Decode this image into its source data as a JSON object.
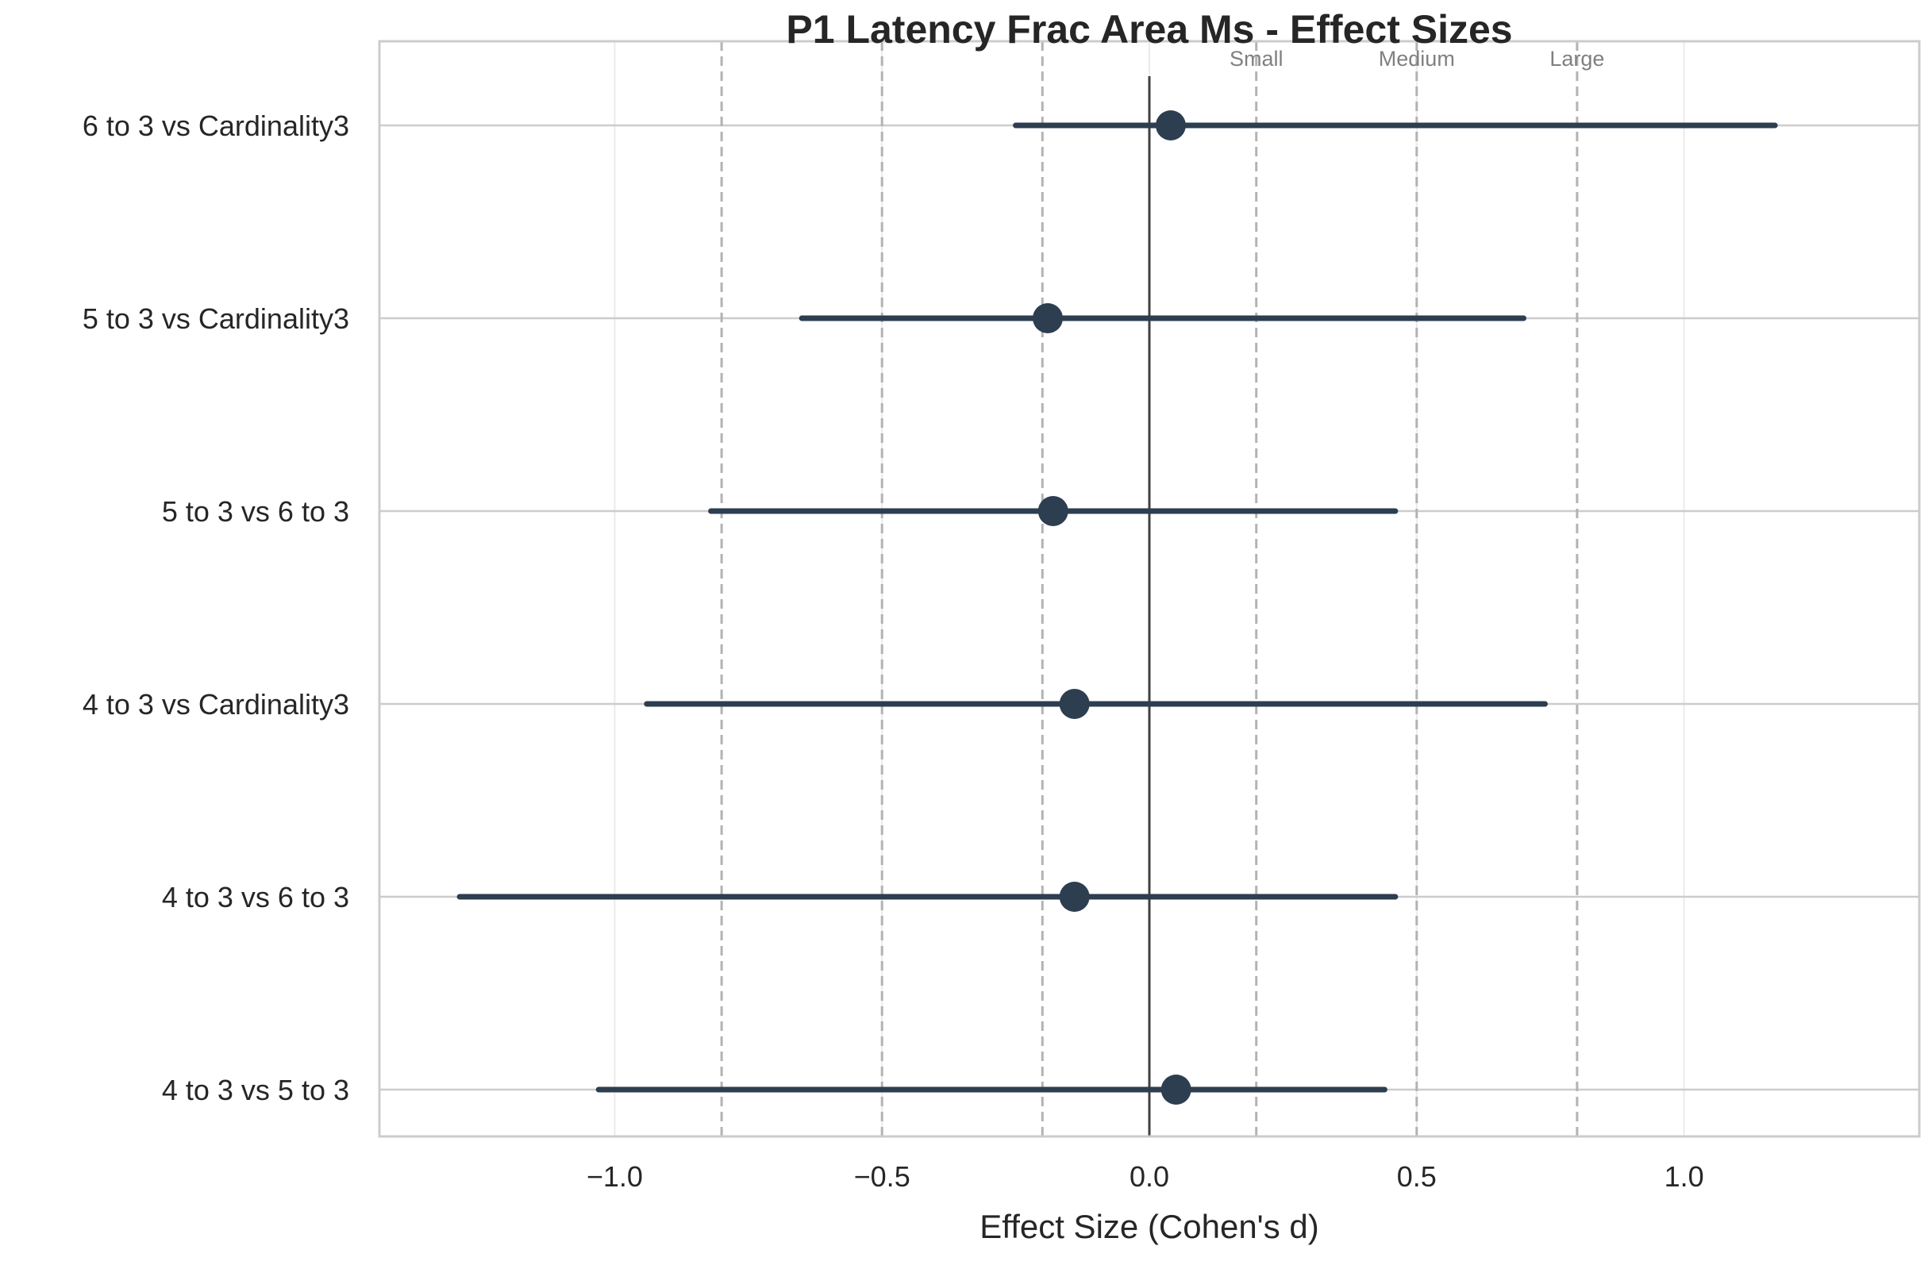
{
  "chart_data": {
    "type": "scatter",
    "subtype": "forest-plot",
    "title": "P1 Latency Frac Area Ms - Effect Sizes",
    "xlabel": "Effect Size (Cohen's d)",
    "ylabel": "",
    "xlim": [
      -1.44,
      1.44
    ],
    "xticks": [
      -1.0,
      -0.5,
      0.0,
      0.5,
      1.0
    ],
    "xtick_labels": [
      "−1.0",
      "−0.5",
      "0.0",
      "0.5",
      "1.0"
    ],
    "grid": true,
    "categories": [
      "6 to 3 vs Cardinality3",
      "5 to 3 vs Cardinality3",
      "5 to 3 vs 6 to 3",
      "4 to 3 vs Cardinality3",
      "4 to 3 vs 6 to 3",
      "4 to 3 vs 5 to 3"
    ],
    "effect_sizes": [
      0.04,
      -0.19,
      -0.18,
      -0.14,
      -0.14,
      0.05
    ],
    "ci_lower": [
      -0.25,
      -0.65,
      -0.82,
      -0.94,
      -1.29,
      -1.03
    ],
    "ci_upper": [
      1.17,
      0.7,
      0.46,
      0.74,
      0.46,
      0.44
    ],
    "reference_line": 0.0,
    "thresholds": [
      {
        "label": "Small",
        "value": 0.2
      },
      {
        "label": "Medium",
        "value": 0.5
      },
      {
        "label": "Large",
        "value": 0.8
      }
    ],
    "colors": {
      "marker": "#2c3e50",
      "threshold_line": "#b3b3b3",
      "grid": "#cccccc",
      "reference": "#404040",
      "threshold_text": "#808080"
    }
  }
}
